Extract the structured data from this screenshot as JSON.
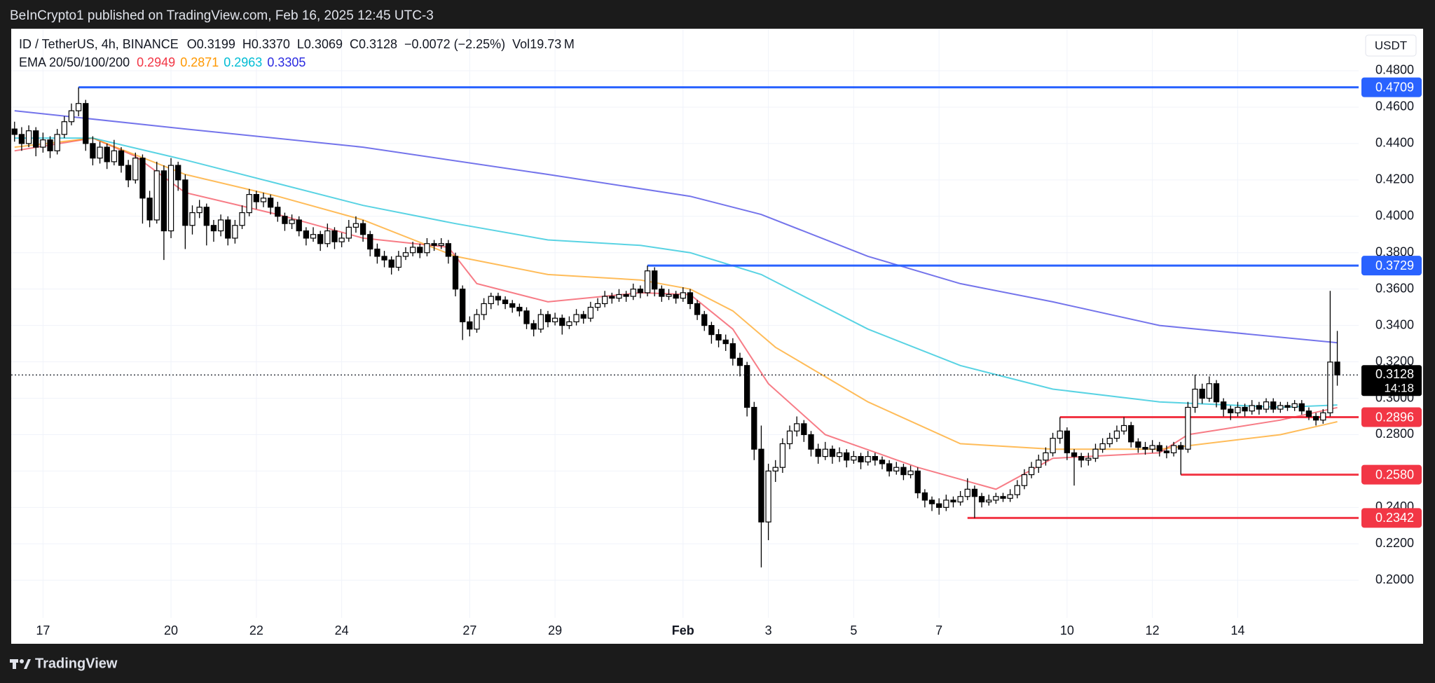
{
  "chart_data": {
    "type": "candlestick",
    "publisher": "BeInCrypto1 published on TradingView.com, Feb 16, 2025 12:45 UTC-3",
    "symbol": "ID / TetherUS, 4h, BINANCE",
    "fields": [
      {
        "label": "O",
        "value": "0.3199"
      },
      {
        "label": "H",
        "value": "0.3370"
      },
      {
        "label": "L",
        "value": "0.3069"
      },
      {
        "label": "C",
        "value": "0.3128"
      }
    ],
    "change": "−0.0072 (−2.25%)",
    "volume_label": "Vol",
    "volume": "19.73 M",
    "indicator": "EMA 20/50/100/200",
    "currency": "USDT",
    "brand": "TradingView",
    "xlim": [
      -0.47,
      189
    ],
    "ylim": [
      0.1793,
      0.5031
    ],
    "grid": true,
    "up_color": "#ffffff",
    "down_color": "#000000",
    "xticks": [
      {
        "value": 4,
        "label": "17"
      },
      {
        "value": 22,
        "label": "20"
      },
      {
        "value": 34,
        "label": "22"
      },
      {
        "value": 46,
        "label": "24"
      },
      {
        "value": 64,
        "label": "27"
      },
      {
        "value": 76,
        "label": "29"
      },
      {
        "value": 94,
        "label": "Feb"
      },
      {
        "value": 106,
        "label": "3"
      },
      {
        "value": 118,
        "label": "5"
      },
      {
        "value": 130,
        "label": "7"
      },
      {
        "value": 148,
        "label": "10"
      },
      {
        "value": 160,
        "label": "12"
      },
      {
        "value": 172,
        "label": "14"
      }
    ],
    "yticks": [
      {
        "value": 0.2,
        "label": "0.2000"
      },
      {
        "value": 0.22,
        "label": "0.2200"
      },
      {
        "value": 0.24,
        "label": "0.2400"
      },
      {
        "value": 0.26,
        "label": "0.2600"
      },
      {
        "value": 0.28,
        "label": "0.2800"
      },
      {
        "value": 0.3,
        "label": "0.3000"
      },
      {
        "value": 0.32,
        "label": "0.3200"
      },
      {
        "value": 0.34,
        "label": "0.3400"
      },
      {
        "value": 0.36,
        "label": "0.3600"
      },
      {
        "value": 0.38,
        "label": "0.3800"
      },
      {
        "value": 0.4,
        "label": "0.4000"
      },
      {
        "value": 0.42,
        "label": "0.4200"
      },
      {
        "value": 0.44,
        "label": "0.4400"
      },
      {
        "value": 0.46,
        "label": "0.4600"
      },
      {
        "value": 0.48,
        "label": "0.4800"
      }
    ],
    "candles": [
      [
        0.448,
        0.452,
        0.441,
        0.445
      ],
      [
        0.445,
        0.449,
        0.436,
        0.44
      ],
      [
        0.44,
        0.45,
        0.438,
        0.447
      ],
      [
        0.447,
        0.449,
        0.433,
        0.438
      ],
      [
        0.438,
        0.446,
        0.435,
        0.442
      ],
      [
        0.442,
        0.444,
        0.432,
        0.436
      ],
      [
        0.436,
        0.448,
        0.434,
        0.445
      ],
      [
        0.445,
        0.455,
        0.443,
        0.452
      ],
      [
        0.452,
        0.462,
        0.45,
        0.458
      ],
      [
        0.458,
        0.4709,
        0.455,
        0.462
      ],
      [
        0.462,
        0.464,
        0.436,
        0.44
      ],
      [
        0.44,
        0.444,
        0.428,
        0.432
      ],
      [
        0.432,
        0.441,
        0.429,
        0.438
      ],
      [
        0.438,
        0.44,
        0.426,
        0.43
      ],
      [
        0.43,
        0.442,
        0.428,
        0.436
      ],
      [
        0.436,
        0.438,
        0.424,
        0.428
      ],
      [
        0.428,
        0.431,
        0.416,
        0.42
      ],
      [
        0.42,
        0.435,
        0.418,
        0.432
      ],
      [
        0.432,
        0.434,
        0.396,
        0.41
      ],
      [
        0.41,
        0.414,
        0.394,
        0.398
      ],
      [
        0.398,
        0.43,
        0.396,
        0.425
      ],
      [
        0.425,
        0.428,
        0.376,
        0.392
      ],
      [
        0.392,
        0.432,
        0.388,
        0.428
      ],
      [
        0.428,
        0.43,
        0.414,
        0.42
      ],
      [
        0.42,
        0.423,
        0.382,
        0.395
      ],
      [
        0.395,
        0.406,
        0.39,
        0.402
      ],
      [
        0.402,
        0.409,
        0.399,
        0.405
      ],
      [
        0.405,
        0.407,
        0.384,
        0.395
      ],
      [
        0.395,
        0.398,
        0.386,
        0.392
      ],
      [
        0.392,
        0.401,
        0.389,
        0.398
      ],
      [
        0.398,
        0.4,
        0.384,
        0.388
      ],
      [
        0.388,
        0.398,
        0.385,
        0.395
      ],
      [
        0.395,
        0.406,
        0.393,
        0.402
      ],
      [
        0.402,
        0.415,
        0.4,
        0.412
      ],
      [
        0.412,
        0.414,
        0.404,
        0.408
      ],
      [
        0.408,
        0.413,
        0.405,
        0.41
      ],
      [
        0.41,
        0.412,
        0.401,
        0.405
      ],
      [
        0.405,
        0.408,
        0.397,
        0.4
      ],
      [
        0.4,
        0.402,
        0.392,
        0.396
      ],
      [
        0.396,
        0.401,
        0.393,
        0.398
      ],
      [
        0.398,
        0.4,
        0.389,
        0.392
      ],
      [
        0.392,
        0.394,
        0.384,
        0.388
      ],
      [
        0.388,
        0.394,
        0.386,
        0.39
      ],
      [
        0.39,
        0.392,
        0.381,
        0.385
      ],
      [
        0.385,
        0.396,
        0.383,
        0.392
      ],
      [
        0.392,
        0.394,
        0.382,
        0.386
      ],
      [
        0.386,
        0.391,
        0.383,
        0.388
      ],
      [
        0.388,
        0.398,
        0.386,
        0.394
      ],
      [
        0.394,
        0.4,
        0.391,
        0.396
      ],
      [
        0.396,
        0.398,
        0.386,
        0.39
      ],
      [
        0.39,
        0.392,
        0.378,
        0.382
      ],
      [
        0.382,
        0.385,
        0.374,
        0.378
      ],
      [
        0.378,
        0.381,
        0.372,
        0.376
      ],
      [
        0.376,
        0.378,
        0.368,
        0.372
      ],
      [
        0.372,
        0.381,
        0.37,
        0.378
      ],
      [
        0.378,
        0.383,
        0.376,
        0.38
      ],
      [
        0.38,
        0.386,
        0.378,
        0.383
      ],
      [
        0.383,
        0.385,
        0.377,
        0.38
      ],
      [
        0.38,
        0.388,
        0.378,
        0.385
      ],
      [
        0.385,
        0.387,
        0.381,
        0.384
      ],
      [
        0.384,
        0.388,
        0.382,
        0.385
      ],
      [
        0.385,
        0.387,
        0.374,
        0.378
      ],
      [
        0.378,
        0.38,
        0.356,
        0.36
      ],
      [
        0.36,
        0.362,
        0.332,
        0.342
      ],
      [
        0.342,
        0.345,
        0.334,
        0.338
      ],
      [
        0.338,
        0.349,
        0.336,
        0.346
      ],
      [
        0.346,
        0.355,
        0.343,
        0.352
      ],
      [
        0.352,
        0.358,
        0.349,
        0.356
      ],
      [
        0.356,
        0.358,
        0.351,
        0.354
      ],
      [
        0.354,
        0.356,
        0.349,
        0.352
      ],
      [
        0.352,
        0.354,
        0.347,
        0.35
      ],
      [
        0.35,
        0.352,
        0.345,
        0.348
      ],
      [
        0.348,
        0.35,
        0.338,
        0.341
      ],
      [
        0.341,
        0.343,
        0.334,
        0.338
      ],
      [
        0.338,
        0.349,
        0.336,
        0.346
      ],
      [
        0.346,
        0.348,
        0.339,
        0.342
      ],
      [
        0.342,
        0.347,
        0.34,
        0.344
      ],
      [
        0.344,
        0.346,
        0.335,
        0.34
      ],
      [
        0.34,
        0.345,
        0.338,
        0.342
      ],
      [
        0.342,
        0.349,
        0.34,
        0.346
      ],
      [
        0.346,
        0.348,
        0.341,
        0.344
      ],
      [
        0.344,
        0.353,
        0.342,
        0.35
      ],
      [
        0.35,
        0.355,
        0.348,
        0.352
      ],
      [
        0.352,
        0.359,
        0.35,
        0.356
      ],
      [
        0.356,
        0.358,
        0.352,
        0.355
      ],
      [
        0.355,
        0.36,
        0.353,
        0.357
      ],
      [
        0.357,
        0.359,
        0.353,
        0.356
      ],
      [
        0.356,
        0.363,
        0.354,
        0.36
      ],
      [
        0.36,
        0.362,
        0.355,
        0.358
      ],
      [
        0.358,
        0.3729,
        0.356,
        0.37
      ],
      [
        0.37,
        0.372,
        0.356,
        0.36
      ],
      [
        0.36,
        0.362,
        0.353,
        0.356
      ],
      [
        0.356,
        0.36,
        0.354,
        0.357
      ],
      [
        0.357,
        0.359,
        0.352,
        0.355
      ],
      [
        0.355,
        0.361,
        0.353,
        0.358
      ],
      [
        0.358,
        0.36,
        0.349,
        0.352
      ],
      [
        0.352,
        0.354,
        0.343,
        0.346
      ],
      [
        0.346,
        0.348,
        0.337,
        0.34
      ],
      [
        0.34,
        0.342,
        0.33,
        0.335
      ],
      [
        0.335,
        0.338,
        0.328,
        0.332
      ],
      [
        0.332,
        0.335,
        0.326,
        0.33
      ],
      [
        0.33,
        0.333,
        0.318,
        0.322
      ],
      [
        0.322,
        0.325,
        0.312,
        0.318
      ],
      [
        0.318,
        0.32,
        0.29,
        0.295
      ],
      [
        0.295,
        0.298,
        0.266,
        0.272
      ],
      [
        0.272,
        0.285,
        0.207,
        0.232
      ],
      [
        0.232,
        0.264,
        0.222,
        0.26
      ],
      [
        0.26,
        0.266,
        0.254,
        0.262
      ],
      [
        0.262,
        0.278,
        0.259,
        0.275
      ],
      [
        0.275,
        0.285,
        0.272,
        0.282
      ],
      [
        0.282,
        0.29,
        0.279,
        0.286
      ],
      [
        0.286,
        0.288,
        0.276,
        0.28
      ],
      [
        0.28,
        0.282,
        0.268,
        0.272
      ],
      [
        0.272,
        0.275,
        0.264,
        0.268
      ],
      [
        0.268,
        0.276,
        0.266,
        0.272
      ],
      [
        0.272,
        0.274,
        0.264,
        0.268
      ],
      [
        0.268,
        0.273,
        0.265,
        0.27
      ],
      [
        0.27,
        0.272,
        0.262,
        0.266
      ],
      [
        0.266,
        0.271,
        0.264,
        0.268
      ],
      [
        0.268,
        0.27,
        0.261,
        0.265
      ],
      [
        0.265,
        0.271,
        0.263,
        0.268
      ],
      [
        0.268,
        0.27,
        0.263,
        0.266
      ],
      [
        0.266,
        0.268,
        0.261,
        0.264
      ],
      [
        0.264,
        0.266,
        0.257,
        0.26
      ],
      [
        0.26,
        0.265,
        0.258,
        0.262
      ],
      [
        0.262,
        0.264,
        0.255,
        0.258
      ],
      [
        0.258,
        0.263,
        0.256,
        0.26
      ],
      [
        0.26,
        0.262,
        0.245,
        0.248
      ],
      [
        0.248,
        0.25,
        0.24,
        0.244
      ],
      [
        0.244,
        0.246,
        0.238,
        0.242
      ],
      [
        0.242,
        0.245,
        0.236,
        0.24
      ],
      [
        0.24,
        0.247,
        0.238,
        0.244
      ],
      [
        0.244,
        0.246,
        0.24,
        0.243
      ],
      [
        0.243,
        0.249,
        0.241,
        0.246
      ],
      [
        0.246,
        0.256,
        0.244,
        0.25
      ],
      [
        0.25,
        0.252,
        0.2342,
        0.246
      ],
      [
        0.246,
        0.248,
        0.24,
        0.243
      ],
      [
        0.243,
        0.247,
        0.241,
        0.244
      ],
      [
        0.244,
        0.248,
        0.242,
        0.246
      ],
      [
        0.246,
        0.248,
        0.243,
        0.245
      ],
      [
        0.245,
        0.25,
        0.243,
        0.247
      ],
      [
        0.247,
        0.255,
        0.245,
        0.252
      ],
      [
        0.252,
        0.261,
        0.25,
        0.258
      ],
      [
        0.258,
        0.265,
        0.256,
        0.262
      ],
      [
        0.262,
        0.269,
        0.259,
        0.266
      ],
      [
        0.266,
        0.273,
        0.263,
        0.27
      ],
      [
        0.27,
        0.281,
        0.268,
        0.278
      ],
      [
        0.278,
        0.2896,
        0.275,
        0.282
      ],
      [
        0.282,
        0.284,
        0.266,
        0.27
      ],
      [
        0.27,
        0.272,
        0.252,
        0.268
      ],
      [
        0.268,
        0.27,
        0.262,
        0.266
      ],
      [
        0.266,
        0.27,
        0.263,
        0.267
      ],
      [
        0.267,
        0.275,
        0.265,
        0.272
      ],
      [
        0.272,
        0.278,
        0.27,
        0.275
      ],
      [
        0.275,
        0.281,
        0.273,
        0.278
      ],
      [
        0.278,
        0.285,
        0.276,
        0.282
      ],
      [
        0.282,
        0.2896,
        0.28,
        0.285
      ],
      [
        0.285,
        0.287,
        0.273,
        0.276
      ],
      [
        0.276,
        0.278,
        0.27,
        0.273
      ],
      [
        0.273,
        0.276,
        0.269,
        0.272
      ],
      [
        0.272,
        0.277,
        0.27,
        0.274
      ],
      [
        0.274,
        0.276,
        0.268,
        0.271
      ],
      [
        0.271,
        0.274,
        0.267,
        0.27
      ],
      [
        0.27,
        0.276,
        0.268,
        0.274
      ],
      [
        0.274,
        0.276,
        0.258,
        0.272
      ],
      [
        0.272,
        0.298,
        0.27,
        0.295
      ],
      [
        0.295,
        0.313,
        0.292,
        0.305
      ],
      [
        0.305,
        0.308,
        0.297,
        0.3
      ],
      [
        0.3,
        0.312,
        0.298,
        0.308
      ],
      [
        0.308,
        0.31,
        0.295,
        0.298
      ],
      [
        0.298,
        0.3,
        0.29,
        0.294
      ],
      [
        0.294,
        0.296,
        0.288,
        0.292
      ],
      [
        0.292,
        0.298,
        0.29,
        0.295
      ],
      [
        0.295,
        0.297,
        0.29,
        0.293
      ],
      [
        0.293,
        0.299,
        0.291,
        0.296
      ],
      [
        0.296,
        0.298,
        0.291,
        0.294
      ],
      [
        0.294,
        0.3,
        0.292,
        0.298
      ],
      [
        0.298,
        0.3,
        0.292,
        0.294
      ],
      [
        0.294,
        0.298,
        0.292,
        0.296
      ],
      [
        0.296,
        0.298,
        0.293,
        0.295
      ],
      [
        0.295,
        0.299,
        0.293,
        0.297
      ],
      [
        0.297,
        0.299,
        0.291,
        0.293
      ],
      [
        0.293,
        0.295,
        0.288,
        0.29
      ],
      [
        0.29,
        0.292,
        0.285,
        0.288
      ],
      [
        0.288,
        0.294,
        0.286,
        0.292
      ],
      [
        0.292,
        0.359,
        0.29,
        0.3199
      ],
      [
        0.3199,
        0.337,
        0.3069,
        0.3128
      ]
    ],
    "series": [
      {
        "color": "#f23645",
        "x": [
          0,
          11,
          17,
          24,
          37,
          49,
          61,
          65,
          75,
          88,
          95,
          101,
          106,
          114,
          127,
          138,
          146,
          161,
          165,
          178,
          186
        ],
        "values": [
          0.436,
          0.443,
          0.433,
          0.413,
          0.401,
          0.388,
          0.383,
          0.363,
          0.353,
          0.358,
          0.357,
          0.338,
          0.308,
          0.28,
          0.262,
          0.25,
          0.267,
          0.27,
          0.28,
          0.288,
          0.2949
        ]
      },
      {
        "color": "#ff9800",
        "x": [
          0,
          11,
          24,
          37,
          49,
          62,
          75,
          88,
          95,
          101,
          107,
          120,
          133,
          146,
          161,
          178,
          186
        ],
        "values": [
          0.438,
          0.443,
          0.423,
          0.411,
          0.398,
          0.378,
          0.368,
          0.365,
          0.36,
          0.348,
          0.328,
          0.298,
          0.275,
          0.272,
          0.272,
          0.28,
          0.2871
        ]
      },
      {
        "color": "#00bcd4",
        "x": [
          0,
          11,
          24,
          37,
          49,
          62,
          75,
          88,
          95,
          105,
          120,
          133,
          146,
          161,
          178,
          186
        ],
        "values": [
          0.443,
          0.443,
          0.431,
          0.418,
          0.406,
          0.396,
          0.387,
          0.384,
          0.38,
          0.368,
          0.338,
          0.318,
          0.305,
          0.298,
          0.295,
          0.2963
        ]
      },
      {
        "color": "#2a2ae0",
        "x": [
          0,
          24,
          49,
          75,
          95,
          105,
          120,
          133,
          146,
          161,
          186
        ],
        "values": [
          0.458,
          0.448,
          0.438,
          0.423,
          0.411,
          0.401,
          0.378,
          0.363,
          0.353,
          0.34,
          0.3305
        ]
      }
    ],
    "levels": [
      {
        "value": 0.4709,
        "from": 9,
        "color": "#2962ff"
      },
      {
        "value": 0.3729,
        "from": 89,
        "color": "#2962ff"
      },
      {
        "value": 0.2896,
        "from": 147,
        "color": "#f23645"
      },
      {
        "value": {
          "value": 0.258,
          "label": "0.2580"
        },
        "from": 164,
        "color": "#f23645"
      },
      {
        "value": 0.2342,
        "from": 134,
        "color": "#f23645"
      }
    ],
    "last_price": {
      "value": 0.3128,
      "countdown": "14:18"
    }
  }
}
